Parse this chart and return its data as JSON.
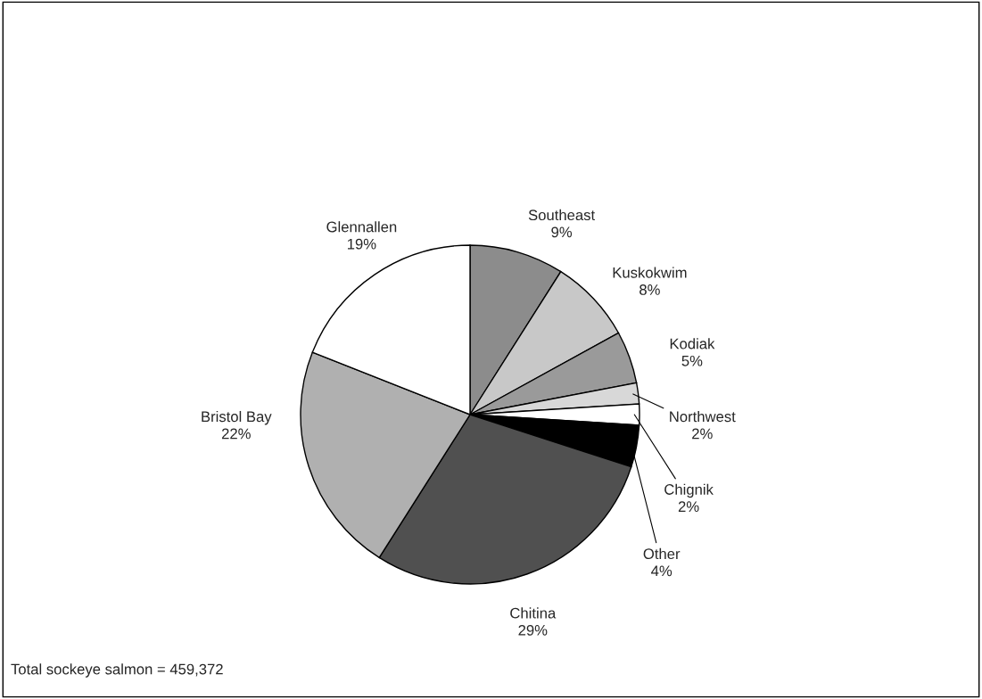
{
  "chart_data": {
    "type": "pie",
    "categories": [
      "Southeast",
      "Kuskokwim",
      "Kodiak",
      "Northwest",
      "Chignik",
      "Other",
      "Chitina",
      "Bristol Bay",
      "Glennallen"
    ],
    "values": [
      9,
      8,
      5,
      2,
      2,
      4,
      29,
      22,
      19
    ],
    "colors": [
      "#8c8c8c",
      "#c8c8c8",
      "#9a9a9a",
      "#d8d8d8",
      "#ffffff",
      "#000000",
      "#505050",
      "#b0b0b0",
      "#ffffff"
    ],
    "value_labels": [
      "9%",
      "8%",
      "5%",
      "2%",
      "2%",
      "4%",
      "29%",
      "22%",
      "19%"
    ],
    "annotations": [
      "Total sockeye salmon = 459,372"
    ]
  }
}
